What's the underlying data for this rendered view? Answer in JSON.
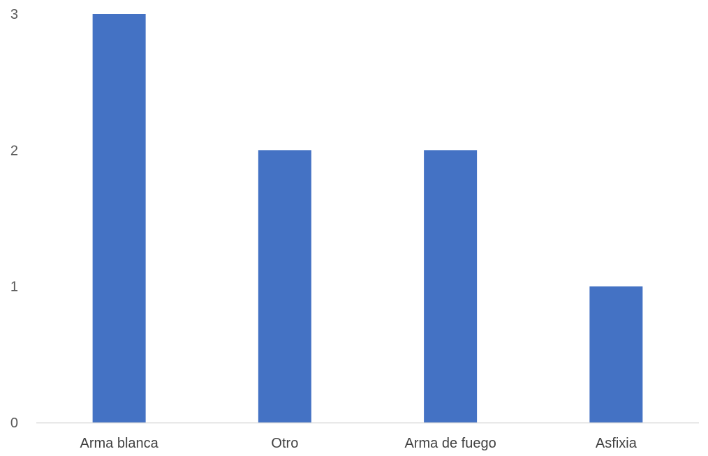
{
  "chart_data": {
    "type": "bar",
    "categories": [
      "Arma blanca",
      "Otro",
      "Arma de fuego",
      "Asfixia"
    ],
    "values": [
      3,
      2,
      2,
      1
    ],
    "title": "",
    "xlabel": "",
    "ylabel": "",
    "ylim": [
      0,
      3
    ],
    "yticks": [
      0,
      1,
      2,
      3
    ],
    "grid": false,
    "legend": "none",
    "bar_color": "#4472C4",
    "axis_color": "#D9D9D9"
  }
}
